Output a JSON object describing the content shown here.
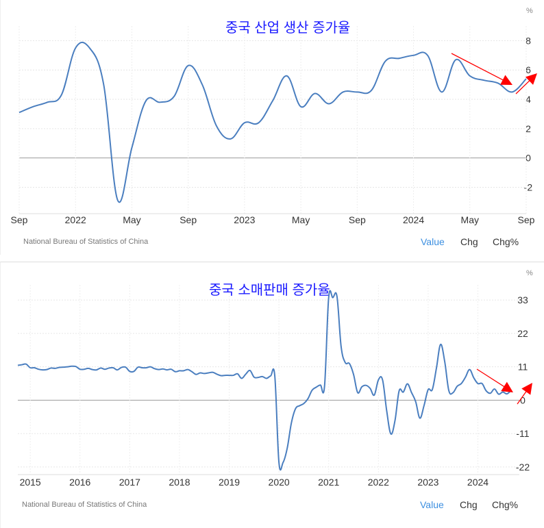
{
  "charts": [
    {
      "title": "중국 산업 생산 증가율",
      "unit": "%",
      "source": "National Bureau of Statistics of China",
      "tabs": [
        "Value",
        "Chg",
        "Chg%"
      ],
      "active_tab": "Value",
      "colors": {
        "line": "#4a7ebf",
        "title": "#1a1aff",
        "annotation": "#ff0000"
      }
    },
    {
      "title": "중국 소매판매 증가율",
      "unit": "%",
      "source": "National Bureau of Statistics of China",
      "tabs": [
        "Value",
        "Chg",
        "Chg%"
      ],
      "active_tab": "Value",
      "colors": {
        "line": "#4a7ebf",
        "title": "#1a1aff",
        "annotation": "#ff0000"
      }
    }
  ],
  "chart_data": [
    {
      "type": "line",
      "title": "중국 산업 생산 증가율",
      "ylabel": "%",
      "x_start": "2021-09",
      "x_end": "2024-09",
      "frequency": "monthly",
      "xticks": [
        "Sep",
        "2022",
        "May",
        "Sep",
        "2023",
        "May",
        "Sep",
        "2024",
        "May",
        "Sep"
      ],
      "yticks": [
        8,
        6,
        4,
        2,
        0,
        -2
      ],
      "ylim": [
        -3.8,
        9
      ],
      "grid": true,
      "series": [
        {
          "name": "Value",
          "values": [
            3.1,
            3.5,
            3.8,
            4.3,
            7.5,
            7.5,
            5.0,
            -2.9,
            0.7,
            3.9,
            3.8,
            4.2,
            6.3,
            5.0,
            2.2,
            1.3,
            2.4,
            2.4,
            3.9,
            5.6,
            3.5,
            4.4,
            3.7,
            4.5,
            4.5,
            4.6,
            6.6,
            6.8,
            7.0,
            7.0,
            4.5,
            6.7,
            5.6,
            5.3,
            5.1,
            4.5,
            5.4
          ]
        }
      ],
      "annotations": [
        "red arrow down from 2024-04 to 2024-08",
        "red arrow up at 2024-09"
      ]
    },
    {
      "type": "line",
      "title": "중국 소매판매 증가율",
      "ylabel": "%",
      "x_start": "2014-10",
      "x_end": "2024-09",
      "frequency": "monthly",
      "xticks": [
        "2015",
        "2016",
        "2017",
        "2018",
        "2019",
        "2020",
        "2021",
        "2022",
        "2023",
        "2024"
      ],
      "yticks": [
        33,
        22,
        11,
        0,
        -11,
        -22
      ],
      "ylim": [
        -24.5,
        38
      ],
      "grid": true,
      "series": [
        {
          "name": "Value",
          "values": [
            11.5,
            11.7,
            11.9,
            10.7,
            10.7,
            10.2,
            10.0,
            10.1,
            10.6,
            10.5,
            10.8,
            10.9,
            11.0,
            11.2,
            11.1,
            10.2,
            10.2,
            10.5,
            10.1,
            10.0,
            10.6,
            10.2,
            10.6,
            10.7,
            10.0,
            10.8,
            10.9,
            9.5,
            9.5,
            10.9,
            10.7,
            10.7,
            11.0,
            10.4,
            10.1,
            10.3,
            10.0,
            10.2,
            9.4,
            9.7,
            9.7,
            10.1,
            9.4,
            8.5,
            9.0,
            8.8,
            9.0,
            9.2,
            8.6,
            8.1,
            8.2,
            8.2,
            8.2,
            8.7,
            7.2,
            8.6,
            9.8,
            7.6,
            7.5,
            7.8,
            7.2,
            8.0,
            8.0,
            -20.5,
            -20.5,
            -15.8,
            -7.5,
            -2.8,
            -1.8,
            -1.1,
            0.5,
            3.3,
            4.3,
            5.0,
            4.6,
            33.8,
            33.8,
            34.2,
            17.7,
            12.4,
            12.1,
            8.5,
            2.5,
            4.4,
            4.9,
            3.9,
            1.7,
            6.7,
            6.7,
            -3.5,
            -11.1,
            -6.7,
            3.1,
            2.7,
            5.4,
            2.5,
            -0.5,
            -5.9,
            -1.8,
            3.5,
            3.5,
            10.6,
            18.4,
            12.7,
            3.1,
            2.5,
            4.6,
            5.5,
            7.6,
            10.1,
            7.4,
            5.5,
            5.5,
            3.1,
            2.3,
            3.7,
            2.0,
            2.7,
            2.1,
            3.2
          ]
        }
      ],
      "annotations": [
        "red arrow down from 2023-11 to 2024-08",
        "red arrow up at 2024-09"
      ]
    }
  ]
}
